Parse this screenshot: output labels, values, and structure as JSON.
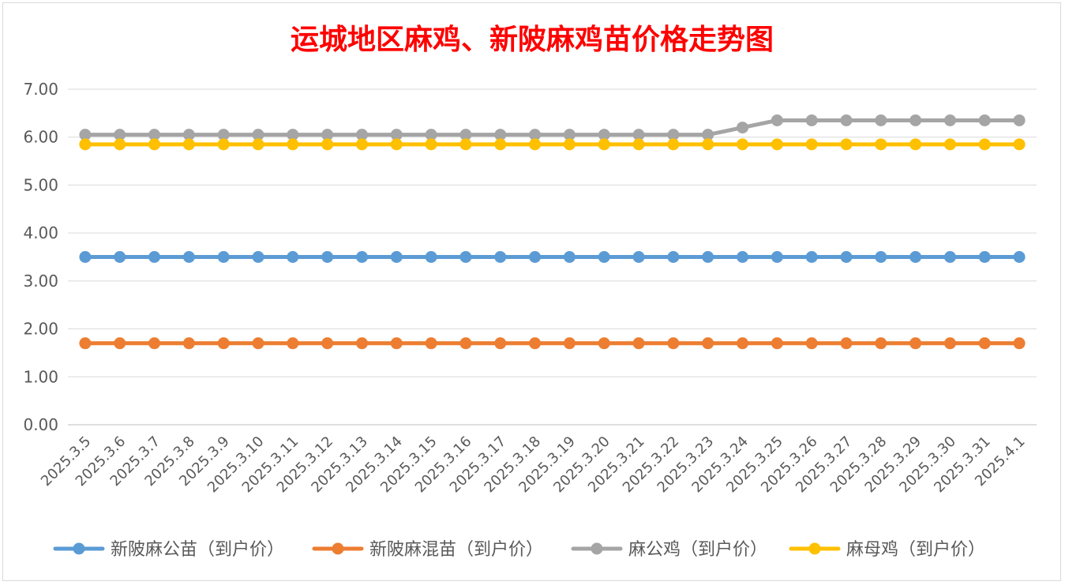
{
  "chart_data": {
    "type": "line",
    "title": "运城地区麻鸡、新陂麻鸡苗价格走势图",
    "title_color": "#ff0000",
    "xlabel": "",
    "ylabel": "",
    "ylim": [
      0,
      7
    ],
    "yticks": [
      "0.00",
      "1.00",
      "2.00",
      "3.00",
      "4.00",
      "5.00",
      "6.00",
      "7.00"
    ],
    "grid": true,
    "legend_position": "bottom",
    "categories": [
      "2025.3.5",
      "2025.3.6",
      "2025.3.7",
      "2025.3.8",
      "2025.3.9",
      "2025.3.10",
      "2025.3.11",
      "2025.3.12",
      "2025.3.13",
      "2025.3.14",
      "2025.3.15",
      "2025.3.16",
      "2025.3.17",
      "2025.3.18",
      "2025.3.19",
      "2025.3.20",
      "2025.3.21",
      "2025.3.22",
      "2025.3.23",
      "2025.3.24",
      "2025.3.25",
      "2025.3.26",
      "2025.3.27",
      "2025.3.28",
      "2025.3.29",
      "2025.3.30",
      "2025.3.31",
      "2025.4.1"
    ],
    "series": [
      {
        "name": "新陂麻公苗（到户价）",
        "color": "#5b9bd5",
        "values": [
          3.5,
          3.5,
          3.5,
          3.5,
          3.5,
          3.5,
          3.5,
          3.5,
          3.5,
          3.5,
          3.5,
          3.5,
          3.5,
          3.5,
          3.5,
          3.5,
          3.5,
          3.5,
          3.5,
          3.5,
          3.5,
          3.5,
          3.5,
          3.5,
          3.5,
          3.5,
          3.5,
          3.5
        ]
      },
      {
        "name": "新陂麻混苗（到户价）",
        "color": "#ed7d31",
        "values": [
          1.7,
          1.7,
          1.7,
          1.7,
          1.7,
          1.7,
          1.7,
          1.7,
          1.7,
          1.7,
          1.7,
          1.7,
          1.7,
          1.7,
          1.7,
          1.7,
          1.7,
          1.7,
          1.7,
          1.7,
          1.7,
          1.7,
          1.7,
          1.7,
          1.7,
          1.7,
          1.7,
          1.7
        ]
      },
      {
        "name": "麻公鸡（到户价）",
        "color": "#a5a5a5",
        "values": [
          6.05,
          6.05,
          6.05,
          6.05,
          6.05,
          6.05,
          6.05,
          6.05,
          6.05,
          6.05,
          6.05,
          6.05,
          6.05,
          6.05,
          6.05,
          6.05,
          6.05,
          6.05,
          6.05,
          6.2,
          6.35,
          6.35,
          6.35,
          6.35,
          6.35,
          6.35,
          6.35,
          6.35
        ]
      },
      {
        "name": "麻母鸡（到户价）",
        "color": "#ffc000",
        "values": [
          5.85,
          5.85,
          5.85,
          5.85,
          5.85,
          5.85,
          5.85,
          5.85,
          5.85,
          5.85,
          5.85,
          5.85,
          5.85,
          5.85,
          5.85,
          5.85,
          5.85,
          5.85,
          5.85,
          5.85,
          5.85,
          5.85,
          5.85,
          5.85,
          5.85,
          5.85,
          5.85,
          5.85
        ]
      }
    ]
  }
}
